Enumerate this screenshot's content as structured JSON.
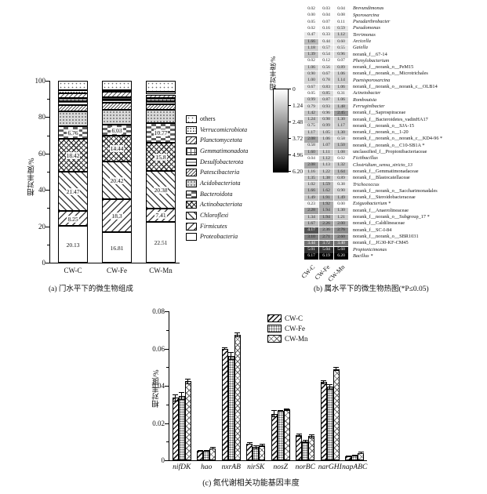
{
  "chart_data": [
    {
      "id": "a",
      "type": "bar",
      "stacked": true,
      "title": "(a) 门水平下的微生物组成",
      "ylabel": "相对丰度/%",
      "ylim": [
        0,
        100
      ],
      "y_ticks": [
        0,
        20,
        40,
        60,
        80,
        100
      ],
      "y_minor_ticks": [
        10,
        30,
        50,
        70,
        90
      ],
      "categories": [
        "CW-C",
        "CW-Fe",
        "CW-Mn"
      ],
      "series_bottom_to_top": [
        {
          "name": "Proteobacteria",
          "pattern": "white",
          "italic": true,
          "values": [
            20.13,
            16.81,
            22.51
          ],
          "labels": [
            "20.13",
            "16.81",
            "22.51"
          ]
        },
        {
          "name": "Firmicutes",
          "pattern": "diag",
          "italic": true,
          "values": [
            8.25,
            18.3,
            7.41
          ],
          "labels": [
            "8.25",
            "18.3",
            "7.41"
          ]
        },
        {
          "name": "Chloroflexi",
          "pattern": "backdiag",
          "italic": true,
          "values": [
            21.47,
            20.42,
            20.38
          ],
          "labels": [
            "21.47",
            "20.42",
            "20.38"
          ]
        },
        {
          "name": "Actinobacteriota",
          "pattern": "cross",
          "italic": true,
          "values": [
            18.42,
            14.44,
            15.8
          ],
          "labels": [
            "18.42",
            "14.44",
            "15.8"
          ]
        },
        {
          "name": "Bacteroidota",
          "pattern": "dashes",
          "italic": true,
          "values": [
            6.76,
            6.03,
            10.77
          ],
          "labels": [
            "6.76",
            "6.03",
            "10.77"
          ]
        },
        {
          "name": "Acidobacteriota",
          "pattern": "graydots",
          "italic": true,
          "values": [
            8.0,
            8.0,
            7.0
          ]
        },
        {
          "name": "Patescibacteria",
          "pattern": "diagfine2",
          "italic": true,
          "values": [
            3.5,
            4.0,
            3.0
          ]
        },
        {
          "name": "Desulfobacterota",
          "pattern": "hlines",
          "italic": true,
          "values": [
            2.2,
            1.6,
            2.0
          ]
        },
        {
          "name": "Gemmatimonadota",
          "pattern": "grid",
          "italic": true,
          "values": [
            1.8,
            1.2,
            1.6
          ]
        },
        {
          "name": "Planctomycetota",
          "pattern": "diagfine",
          "italic": true,
          "values": [
            2.5,
            3.0,
            2.0
          ]
        },
        {
          "name": "Verrucomicrobiota",
          "pattern": "dotsdense",
          "italic": true,
          "values": [
            1.8,
            1.2,
            1.5
          ]
        },
        {
          "name": "others",
          "pattern": "dotssparse",
          "italic": false,
          "values": [
            5.17,
            5.0,
            6.03
          ]
        }
      ]
    },
    {
      "id": "b",
      "type": "heatmap",
      "title": "(b) 属水平下的微生物热图(*P≤0.05)",
      "colorbar": {
        "label": "相对丰度/%",
        "min": 0,
        "max": 6.2,
        "ticks": [
          "0",
          "1.24",
          "2.48",
          "3.72",
          "4.96",
          "6.20"
        ]
      },
      "samples": [
        "CW-C",
        "CW-Fe",
        "CW-Mn"
      ],
      "rows": [
        {
          "label": "Brevundimonas",
          "italic": true,
          "values": [
            0.02,
            0.03,
            0.04
          ]
        },
        {
          "label": "Sporosarcina",
          "italic": true,
          "values": [
            0.0,
            0.04,
            0.08
          ]
        },
        {
          "label": "Pseudarthrobacter",
          "italic": true,
          "values": [
            0.05,
            0.07,
            0.11
          ]
        },
        {
          "label": "Pseudomonas",
          "italic": true,
          "values": [
            0.02,
            0.16,
            0.59
          ]
        },
        {
          "label": "Terrimonas",
          "italic": true,
          "values": [
            0.47,
            0.33,
            1.12
          ]
        },
        {
          "label": "Arcicella",
          "italic": true,
          "values": [
            1.66,
            0.44,
            0.6
          ]
        },
        {
          "label": "Gaiella",
          "italic": true,
          "values": [
            1.18,
            0.57,
            0.55
          ]
        },
        {
          "label": "norank_f__67-14",
          "italic": false,
          "values": [
            1.39,
            0.54,
            0.96
          ]
        },
        {
          "label": "Phenylobacterium",
          "italic": true,
          "values": [
            0.02,
            0.12,
            0.07
          ]
        },
        {
          "label": "norank_f__norank_o__PeM15",
          "italic": false,
          "values": [
            1.06,
            0.56,
            0.89
          ]
        },
        {
          "label": "norank_f__norank_o__Microtrichales",
          "italic": false,
          "values": [
            0.9,
            0.67,
            1.06
          ]
        },
        {
          "label": "Paenisporosarcina",
          "italic": true,
          "values": [
            1.0,
            0.78,
            1.14
          ]
        },
        {
          "label": "norank_f__norank_o__norank_c__OLB14",
          "italic": false,
          "values": [
            0.67,
            0.83,
            1.06
          ]
        },
        {
          "label": "Acinetobacter",
          "italic": true,
          "values": [
            0.05,
            0.85,
            0.31
          ]
        },
        {
          "label": "Romboutsia",
          "italic": true,
          "values": [
            0.99,
            0.87,
            1.06
          ]
        },
        {
          "label": "Ferruginibacter",
          "italic": true,
          "values": [
            0.79,
            0.93,
            1.48
          ]
        },
        {
          "label": "norank_f__Saprospiraceae",
          "italic": false,
          "values": [
            1.42,
            0.96,
            2.45
          ]
        },
        {
          "label": "norank_f__Bacteroidetes_vadinHA17",
          "italic": false,
          "values": [
            1.24,
            0.98,
            1.3
          ]
        },
        {
          "label": "norank_f__norank_o__SJA-15",
          "italic": false,
          "values": [
            0.75,
            0.99,
            1.17
          ]
        },
        {
          "label": "norank_f__norank_o__1-20",
          "italic": false,
          "values": [
            1.17,
            1.05,
            1.3
          ]
        },
        {
          "label": "norank_f__norank_o__norank_c__KD4-96 *",
          "italic": false,
          "values": [
            2.08,
            1.06,
            0.58
          ]
        },
        {
          "label": "norank_f__norank_o__C10-SB1A *",
          "italic": false,
          "values": [
            0.58,
            1.07,
            1.5
          ]
        },
        {
          "label": "unclassified_f__Propionibacteriaceae",
          "italic": false,
          "values": [
            1.6,
            1.11,
            1.08
          ]
        },
        {
          "label": "Fictibacillus",
          "italic": true,
          "values": [
            0.04,
            1.12,
            0.02
          ]
        },
        {
          "label": "Clostridium_sensu_stricto_13",
          "italic": true,
          "values": [
            2.08,
            1.13,
            1.32
          ]
        },
        {
          "label": "norank_f__Gemmatimonadaceae",
          "italic": false,
          "values": [
            1.16,
            1.22,
            1.64
          ]
        },
        {
          "label": "norank_f__Blastocatellaceae",
          "italic": false,
          "values": [
            1.35,
            1.38,
            0.89
          ]
        },
        {
          "label": "Trichococcus",
          "italic": true,
          "values": [
            1.02,
            1.59,
            0.38
          ]
        },
        {
          "label": "norank_f__norank_o__Saccharimonadales",
          "italic": false,
          "values": [
            1.66,
            1.62,
            0.9
          ]
        },
        {
          "label": "norank_f__Steroidobacteraceae",
          "italic": false,
          "values": [
            1.49,
            1.91,
            1.49
          ]
        },
        {
          "label": "Exiguobacterium *",
          "italic": true,
          "values": [
            0.23,
            1.92,
            0.0
          ]
        },
        {
          "label": "norank_f__Anaerolineaceae",
          "italic": false,
          "values": [
            2.28,
            1.94,
            1.3
          ]
        },
        {
          "label": "norank_f__norank_o__Subgroup_17 *",
          "italic": false,
          "values": [
            1.34,
            1.94,
            1.21
          ]
        },
        {
          "label": "norank_f__Caldilineaceae",
          "italic": false,
          "values": [
            1.67,
            2.26,
            2.0
          ]
        },
        {
          "label": "norank_f__SC-I-84",
          "italic": false,
          "values": [
            4.17,
            2.36,
            2.76
          ]
        },
        {
          "label": "norank_f__norank_o__SBR1031",
          "italic": false,
          "values": [
            3.1,
            2.71,
            2.6
          ]
        },
        {
          "label": "norank_f__JG30-KF-CM45",
          "italic": false,
          "values": [
            3.44,
            3.72,
            3.4
          ]
        },
        {
          "label": "Propionicimonas",
          "italic": true,
          "values": [
            5.01,
            5.04,
            5.68
          ]
        },
        {
          "label": "Bacillus *",
          "italic": true,
          "values": [
            6.17,
            6.19,
            6.2
          ]
        }
      ]
    },
    {
      "id": "c",
      "type": "bar",
      "grouped": true,
      "title": "(c) 氮代谢相关功能基因丰度",
      "ylabel": "相对丰度/%",
      "ylim": [
        0,
        0.08
      ],
      "y_ticks": [
        "0",
        "0.02",
        "0.04",
        "0.06",
        "0.08"
      ],
      "categories": [
        "nifDK",
        "hao",
        "nxrAB",
        "nirSK",
        "nosZ",
        "norBC",
        "narGHI",
        "napABC"
      ],
      "series": [
        {
          "name": "CW-C",
          "pattern": "cdiag",
          "values": [
            0.0335,
            0.005,
            0.06,
            0.009,
            0.025,
            0.0135,
            0.042,
            0.002
          ],
          "errors": [
            0.002,
            0.0005,
            0.0008,
            0.0005,
            0.002,
            0.001,
            0.001,
            0.0005
          ]
        },
        {
          "name": "CW-Fe",
          "pattern": "cdots",
          "values": [
            0.0345,
            0.005,
            0.056,
            0.007,
            0.0265,
            0.01,
            0.0395,
            0.0025
          ],
          "errors": [
            0.002,
            0.0005,
            0.002,
            0.001,
            0.0005,
            0.0008,
            0.0015,
            0.0005
          ]
        },
        {
          "name": "CW-Mn",
          "pattern": "ccross",
          "values": [
            0.0425,
            0.0065,
            0.0675,
            0.008,
            0.0272,
            0.013,
            0.049,
            0.004
          ],
          "errors": [
            0.0015,
            0.0005,
            0.0012,
            0.0008,
            0.0005,
            0.001,
            0.001,
            0.0008
          ]
        }
      ]
    }
  ]
}
